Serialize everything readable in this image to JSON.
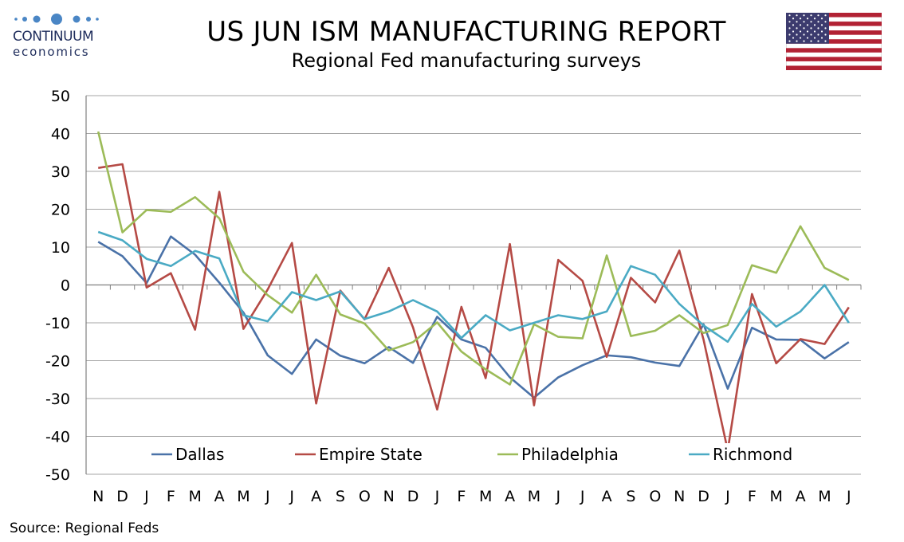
{
  "header": {
    "logo_word": "CONTINUUM",
    "logo_sub": "economics",
    "title": "US JUN ISM MANUFACTURING REPORT",
    "subtitle": "Regional Fed manufacturing surveys"
  },
  "flag": {
    "icon": "us-flag-icon"
  },
  "source": "Source: Regional Feds",
  "colors": {
    "Dallas": "#4a72a8",
    "Empire State": "#b54a45",
    "Philadelphia": "#9cbb58",
    "Richmond": "#4aaac4",
    "grid": "#a6a6a6",
    "logo": "#1f2d5c"
  },
  "chart_data": {
    "type": "line",
    "title": "Regional Fed manufacturing surveys",
    "xlabel": "",
    "ylabel": "",
    "categories": [
      "N",
      "D",
      "J",
      "F",
      "M",
      "A",
      "M",
      "J",
      "J",
      "A",
      "S",
      "O",
      "N",
      "D",
      "J",
      "F",
      "M",
      "A",
      "M",
      "J",
      "J",
      "A",
      "S",
      "O",
      "N",
      "D",
      "J",
      "F",
      "M",
      "A",
      "M",
      "J"
    ],
    "ylim": [
      -50,
      50
    ],
    "yticks": [
      50,
      40,
      30,
      20,
      10,
      0,
      -10,
      -20,
      -30,
      -40,
      -50
    ],
    "grid": true,
    "legend_position": "bottom",
    "series": [
      {
        "name": "Dallas",
        "values": [
          11.4,
          7.6,
          0.5,
          12.8,
          8.0,
          0.6,
          -7.3,
          -18.6,
          -23.5,
          -14.4,
          -18.7,
          -20.7,
          -16.4,
          -20.6,
          -8.4,
          -14.4,
          -16.6,
          -24.4,
          -29.8,
          -24.4,
          -21.2,
          -18.6,
          -19.1,
          -20.5,
          -21.4,
          -10.4,
          -27.4,
          -11.3,
          -14.4,
          -14.5,
          -19.4,
          -15.1
        ]
      },
      {
        "name": "Empire State",
        "values": [
          30.9,
          31.9,
          -0.7,
          3.1,
          -11.8,
          24.6,
          -11.6,
          -1.2,
          11.1,
          -31.3,
          -1.5,
          -9.1,
          4.5,
          -11.2,
          -32.9,
          -5.8,
          -24.6,
          10.8,
          -31.8,
          6.6,
          1.1,
          -19.0,
          1.9,
          -4.6,
          9.1,
          -14.5,
          -43.7,
          -2.4,
          -20.7,
          -14.3,
          -15.6,
          -5.9
        ]
      },
      {
        "name": "Philadelphia",
        "values": [
          40.5,
          13.9,
          19.8,
          19.3,
          23.2,
          17.6,
          3.5,
          -2.7,
          -7.3,
          2.7,
          -7.8,
          -10.2,
          -17.3,
          -15.1,
          -9.9,
          -17.6,
          -22.3,
          -26.3,
          -10.4,
          -13.7,
          -14.1,
          7.8,
          -13.5,
          -12.1,
          -8.0,
          -12.7,
          -10.6,
          5.2,
          3.2,
          15.5,
          4.5,
          1.3
        ]
      },
      {
        "name": "Richmond",
        "values": [
          14.0,
          11.8,
          6.9,
          5.0,
          9.0,
          7.0,
          -8.0,
          -9.6,
          -1.9,
          -4.0,
          -1.7,
          -9.0,
          -7.0,
          -4.0,
          -7.0,
          -14.0,
          -8.0,
          -12.0,
          -10.0,
          -8.0,
          -9.0,
          -7.0,
          5.0,
          2.7,
          -5.0,
          -10.7,
          -15.0,
          -5.0,
          -11.0,
          -7.0,
          0.0,
          -10.0
        ]
      }
    ]
  }
}
